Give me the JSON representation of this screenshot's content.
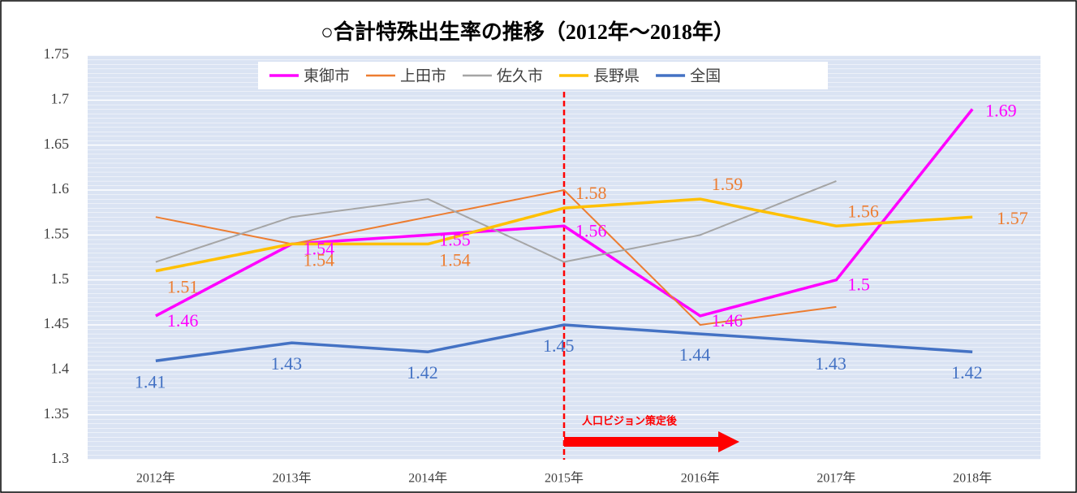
{
  "chart_data": {
    "type": "line",
    "title": "○合計特殊出生率の推移（2012年～2018年）",
    "categories": [
      "2012年",
      "2013年",
      "2014年",
      "2015年",
      "2016年",
      "2017年",
      "2018年"
    ],
    "series": [
      {
        "name": "東御市",
        "color": "#ff00ff",
        "label_color": "#ff00ff",
        "values": [
          1.46,
          1.54,
          1.55,
          1.56,
          1.46,
          1.5,
          1.69
        ]
      },
      {
        "name": "上田市",
        "color": "#ed7d31",
        "values": [
          1.57,
          1.54,
          1.57,
          1.6,
          1.45,
          1.47,
          null
        ]
      },
      {
        "name": "佐久市",
        "color": "#a5a5a5",
        "values": [
          1.52,
          1.57,
          1.59,
          1.52,
          1.55,
          1.61,
          null
        ]
      },
      {
        "name": "長野県",
        "color": "#ffc000",
        "label_color": "#ed7d31",
        "values": [
          1.51,
          1.54,
          1.54,
          1.58,
          1.59,
          1.56,
          1.57
        ]
      },
      {
        "name": "全国",
        "color": "#4472c4",
        "label_color": "#4472c4",
        "values": [
          1.41,
          1.43,
          1.42,
          1.45,
          1.44,
          1.43,
          1.42
        ]
      }
    ],
    "ylim": [
      1.3,
      1.75
    ],
    "yticks": [
      1.3,
      1.35,
      1.4,
      1.45,
      1.5,
      1.55,
      1.6,
      1.65,
      1.7,
      1.75
    ],
    "legend": "top",
    "annotation": "人口ビジョン策定後",
    "annotation_color": "#ff0000"
  }
}
